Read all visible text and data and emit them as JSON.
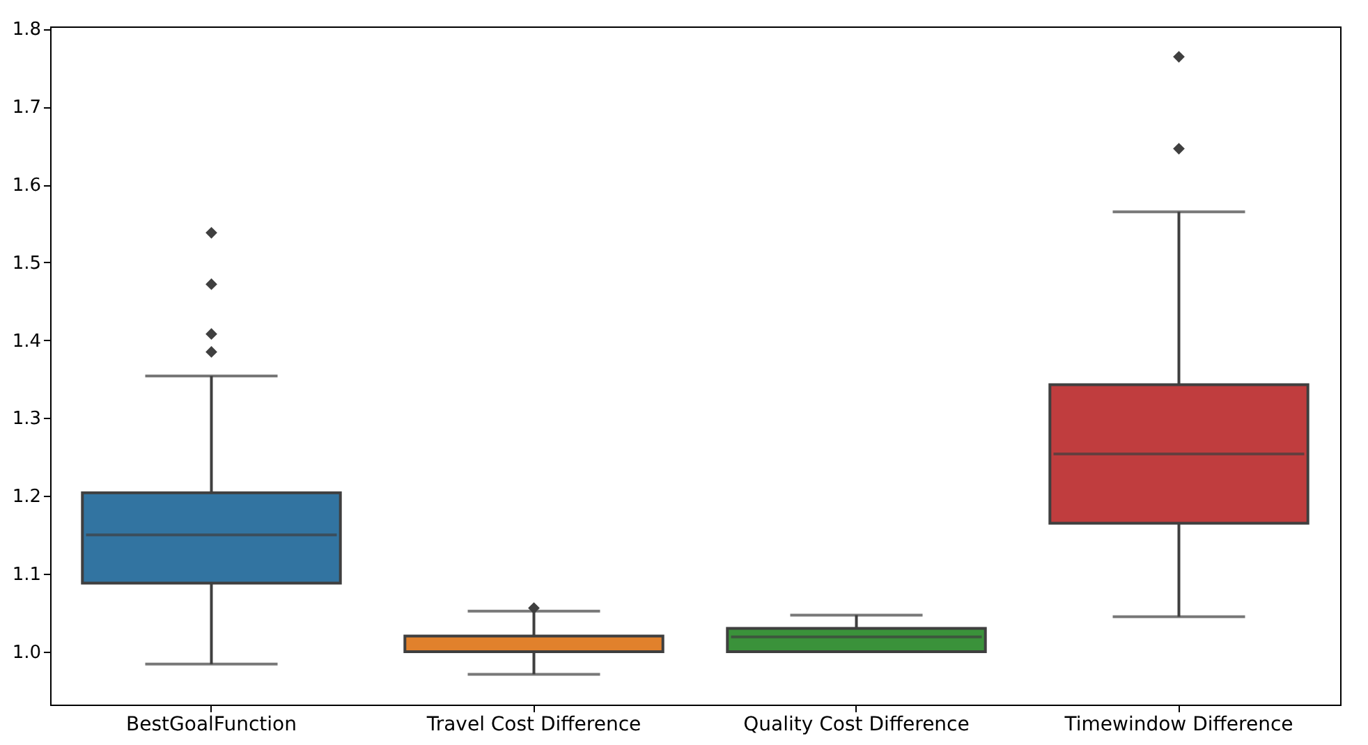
{
  "chart_data": {
    "type": "box",
    "categories": [
      "BestGoalFunction",
      "Travel Cost Difference",
      "Quality Cost Difference",
      "Timewindow Difference"
    ],
    "colors": [
      "#3274a1",
      "#e1812c",
      "#3a923a",
      "#c03d3e"
    ],
    "boxes": [
      {
        "low": 0.984,
        "q1": 1.088,
        "median": 1.15,
        "q3": 1.204,
        "high": 1.354,
        "outliers": [
          1.385,
          1.408,
          1.472,
          1.538
        ]
      },
      {
        "low": 0.971,
        "q1": 1.0,
        "median": 1.0,
        "q3": 1.02,
        "high": 1.052,
        "outliers": [
          1.056
        ]
      },
      {
        "low": 1.0,
        "q1": 1.0,
        "median": 1.019,
        "q3": 1.03,
        "high": 1.047
      },
      {
        "low": 1.045,
        "q1": 1.165,
        "median": 1.254,
        "q3": 1.343,
        "high": 1.565,
        "outliers": [
          1.646,
          1.764
        ]
      }
    ],
    "ylim": [
      0.932,
      1.803
    ],
    "yticks": [
      {
        "value": 1,
        "label": "1.0"
      },
      1.1,
      1.2,
      1.3,
      1.4,
      1.5,
      1.6,
      1.7,
      {
        "value": 1.8,
        "label": "1.8"
      }
    ],
    "grid": false,
    "marker": "diamond"
  }
}
